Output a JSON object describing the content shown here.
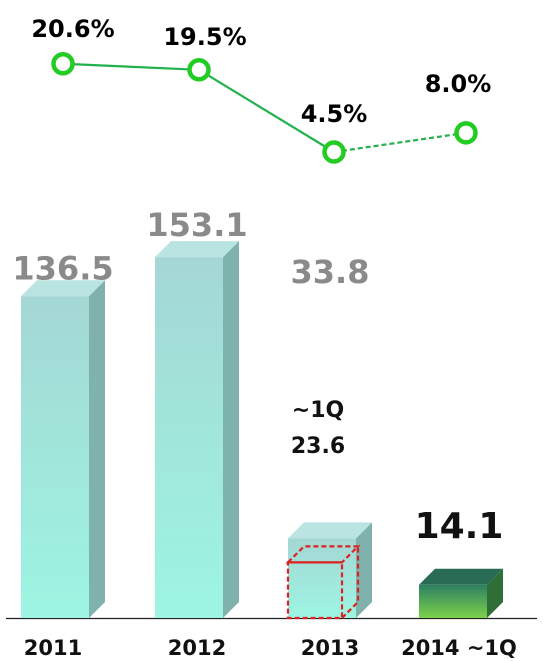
{
  "chart_data": {
    "type": "bar",
    "categories": [
      "2011",
      "2012",
      "2013",
      "2014 ~1Q"
    ],
    "values": [
      136.5,
      153.1,
      33.8,
      14.1
    ],
    "value_labels": [
      "136.5",
      "153.1",
      "33.8",
      "14.1"
    ],
    "highlight": {
      "category": "2013",
      "period": "~1Q",
      "value": 23.6,
      "label_lines": [
        "~1Q",
        "23.6"
      ]
    },
    "growth_rate": {
      "type": "line",
      "values": [
        20.6,
        19.5,
        4.5,
        8.0
      ],
      "labels": [
        "20.6%",
        "19.5%",
        "4.5%",
        "8.0%"
      ],
      "last_segment_dashed": true
    },
    "colors": {
      "bar_top": "#a4d7d4",
      "bar_bottom": "#9df5e2",
      "bar_side": "#7fb2ac",
      "highlight_bar_top": "#2e7f63",
      "highlight_bar_bottom": "#7cd24a",
      "highlight_bar_side": "#2f6e36",
      "line": "#22b14c",
      "marker": "#22cc22",
      "muted_label": "#8a8a8a",
      "dashed_box": "#dd2222"
    },
    "title": "",
    "xlabel": "",
    "ylabel": ""
  }
}
